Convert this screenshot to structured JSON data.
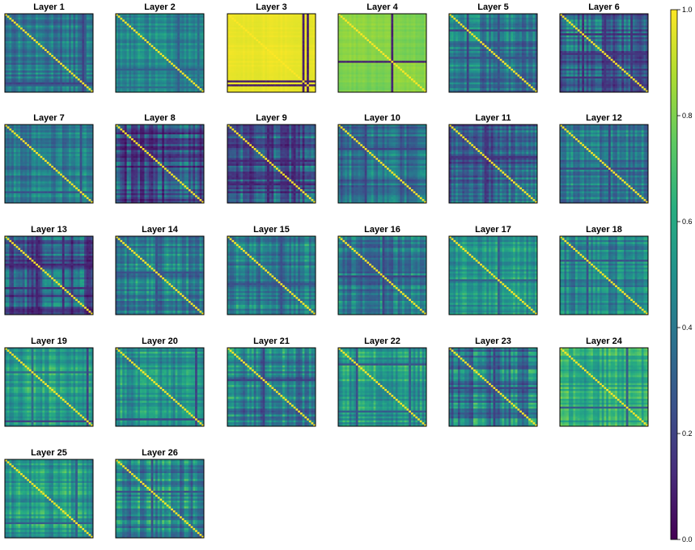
{
  "chart_data": {
    "type": "heatmap",
    "panels": [
      {
        "title": "Layer 1",
        "base": 0.4,
        "vari": 0.1,
        "stripes": [
          [
            0.88,
            0.2
          ],
          [
            0.92,
            0.3
          ]
        ],
        "split": null
      },
      {
        "title": "Layer 2",
        "base": 0.47,
        "vari": 0.08,
        "stripes": [
          [
            0.72,
            0.3
          ],
          [
            0.93,
            0.35
          ]
        ],
        "split": null
      },
      {
        "title": "Layer 3",
        "base": 0.97,
        "vari": 0.01,
        "stripes": [
          [
            0.86,
            0.08
          ],
          [
            0.92,
            0.08
          ]
        ],
        "split": null
      },
      {
        "title": "Layer 4",
        "base": 0.83,
        "vari": 0.02,
        "stripes": [
          [
            0.6,
            0.1
          ]
        ],
        "split": 0.6
      },
      {
        "title": "Layer 5",
        "base": 0.38,
        "vari": 0.12,
        "stripes": [
          [
            0.22,
            0.2
          ],
          [
            0.55,
            0.25
          ]
        ],
        "split": null
      },
      {
        "title": "Layer 6",
        "base": 0.3,
        "vari": 0.15,
        "stripes": [
          [
            0.25,
            0.12
          ],
          [
            0.5,
            0.15
          ],
          [
            0.8,
            0.15
          ]
        ],
        "split": null
      },
      {
        "title": "Layer 7",
        "base": 0.42,
        "vari": 0.1,
        "stripes": [
          [
            0.85,
            0.25
          ]
        ],
        "split": null
      },
      {
        "title": "Layer 8",
        "base": 0.22,
        "vari": 0.15,
        "stripes": [],
        "split": null
      },
      {
        "title": "Layer 9",
        "base": 0.28,
        "vari": 0.15,
        "stripes": [
          [
            0.45,
            0.1
          ],
          [
            0.75,
            0.1
          ]
        ],
        "split": null
      },
      {
        "title": "Layer 10",
        "base": 0.38,
        "vari": 0.12,
        "stripes": [
          [
            0.3,
            0.2
          ]
        ],
        "split": null
      },
      {
        "title": "Layer 11",
        "base": 0.32,
        "vari": 0.15,
        "stripes": [
          [
            0.4,
            0.15
          ]
        ],
        "split": null
      },
      {
        "title": "Layer 12",
        "base": 0.38,
        "vari": 0.12,
        "stripes": [
          [
            0.55,
            0.2
          ]
        ],
        "split": null
      },
      {
        "title": "Layer 13",
        "base": 0.26,
        "vari": 0.15,
        "stripes": [
          [
            0.35,
            0.1
          ],
          [
            0.65,
            0.12
          ]
        ],
        "split": null
      },
      {
        "title": "Layer 14",
        "base": 0.42,
        "vari": 0.12,
        "stripes": [
          [
            0.45,
            0.25
          ]
        ],
        "split": null
      },
      {
        "title": "Layer 15",
        "base": 0.43,
        "vari": 0.12,
        "stripes": [
          [
            0.6,
            0.25
          ]
        ],
        "split": null
      },
      {
        "title": "Layer 16",
        "base": 0.42,
        "vari": 0.12,
        "stripes": [
          [
            0.5,
            0.2
          ]
        ],
        "split": null
      },
      {
        "title": "Layer 17",
        "base": 0.52,
        "vari": 0.1,
        "stripes": [
          [
            0.55,
            0.3
          ]
        ],
        "split": null
      },
      {
        "title": "Layer 18",
        "base": 0.44,
        "vari": 0.1,
        "stripes": [
          [
            0.3,
            0.25
          ]
        ],
        "split": null
      },
      {
        "title": "Layer 19",
        "base": 0.58,
        "vari": 0.1,
        "stripes": [
          [
            0.93,
            0.2
          ],
          [
            0.3,
            0.35
          ]
        ],
        "split": null
      },
      {
        "title": "Layer 20",
        "base": 0.5,
        "vari": 0.12,
        "stripes": [
          [
            0.9,
            0.2
          ]
        ],
        "split": null
      },
      {
        "title": "Layer 21",
        "base": 0.42,
        "vari": 0.15,
        "stripes": [
          [
            0.4,
            0.2
          ]
        ],
        "split": null
      },
      {
        "title": "Layer 22",
        "base": 0.52,
        "vari": 0.12,
        "stripes": [
          [
            0.2,
            0.25
          ],
          [
            0.8,
            0.3
          ]
        ],
        "split": null
      },
      {
        "title": "Layer 23",
        "base": 0.4,
        "vari": 0.15,
        "stripes": [
          [
            0.5,
            0.2
          ]
        ],
        "split": null
      },
      {
        "title": "Layer 24",
        "base": 0.62,
        "vari": 0.1,
        "stripes": [
          [
            0.75,
            0.3
          ]
        ],
        "split": null
      },
      {
        "title": "Layer 25",
        "base": 0.53,
        "vari": 0.12,
        "stripes": [
          [
            0.8,
            0.3
          ]
        ],
        "split": null
      },
      {
        "title": "Layer 26",
        "base": 0.45,
        "vari": 0.15,
        "stripes": [
          [
            0.4,
            0.25
          ]
        ],
        "split": null
      }
    ],
    "colorbar": {
      "colormap": "viridis",
      "vmin": 0.0,
      "vmax": 1.0,
      "ticks": [
        "0.0",
        "0.2",
        "0.4",
        "0.6",
        "0.8",
        "1.0"
      ]
    }
  }
}
